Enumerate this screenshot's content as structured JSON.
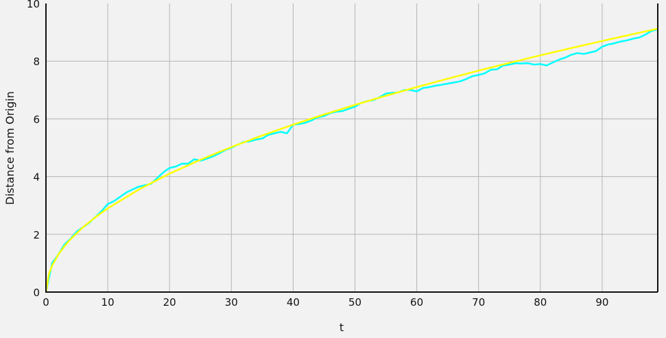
{
  "chart_data": {
    "type": "line",
    "title": "",
    "xlabel": "t",
    "ylabel": "Distance from Origin",
    "xlim": [
      0,
      99
    ],
    "ylim": [
      0,
      10
    ],
    "xticks": [
      0,
      10,
      20,
      30,
      40,
      50,
      60,
      70,
      80,
      90
    ],
    "yticks": [
      0,
      2,
      4,
      6,
      8,
      10
    ],
    "grid": true,
    "background": "#f2f2f2",
    "series": [
      {
        "color": "#00ffff",
        "x": [
          0,
          1,
          2,
          3,
          4,
          5,
          6,
          7,
          8,
          9,
          10,
          11,
          12,
          13,
          14,
          15,
          16,
          17,
          18,
          19,
          20,
          21,
          22,
          23,
          24,
          25,
          26,
          27,
          28,
          29,
          30,
          31,
          32,
          33,
          34,
          35,
          36,
          37,
          38,
          39,
          40,
          41,
          42,
          43,
          44,
          45,
          46,
          47,
          48,
          49,
          50,
          51,
          52,
          53,
          54,
          55,
          56,
          57,
          58,
          59,
          60,
          61,
          62,
          63,
          64,
          65,
          66,
          67,
          68,
          69,
          70,
          71,
          72,
          73,
          74,
          75,
          76,
          77,
          78,
          79,
          80,
          81,
          82,
          83,
          84,
          85,
          86,
          87,
          88,
          89,
          90,
          91,
          92,
          93,
          94,
          95,
          96,
          97,
          98,
          99
        ],
        "y": [
          0,
          1.0,
          1.3,
          1.65,
          1.85,
          2.1,
          2.25,
          2.4,
          2.6,
          2.8,
          3.05,
          3.15,
          3.3,
          3.45,
          3.55,
          3.65,
          3.7,
          3.75,
          3.95,
          4.15,
          4.3,
          4.35,
          4.45,
          4.45,
          4.6,
          4.55,
          4.62,
          4.7,
          4.8,
          4.92,
          5.0,
          5.1,
          5.2,
          5.22,
          5.28,
          5.32,
          5.45,
          5.5,
          5.55,
          5.5,
          5.8,
          5.82,
          5.87,
          5.95,
          6.05,
          6.1,
          6.2,
          6.25,
          6.27,
          6.35,
          6.42,
          6.55,
          6.62,
          6.65,
          6.75,
          6.88,
          6.9,
          6.92,
          7.0,
          7.0,
          6.95,
          7.07,
          7.1,
          7.15,
          7.18,
          7.22,
          7.26,
          7.3,
          7.38,
          7.48,
          7.52,
          7.58,
          7.7,
          7.72,
          7.85,
          7.88,
          7.93,
          7.92,
          7.93,
          7.88,
          7.9,
          7.85,
          7.95,
          8.05,
          8.12,
          8.22,
          8.28,
          8.25,
          8.3,
          8.35,
          8.5,
          8.58,
          8.62,
          8.68,
          8.72,
          8.78,
          8.82,
          8.92,
          9.05,
          9.1
        ]
      },
      {
        "color": "#ffff00",
        "x": [
          0,
          0.5,
          1,
          2,
          3,
          4,
          6,
          8,
          10,
          15,
          20,
          25,
          30,
          35,
          40,
          45,
          50,
          55,
          60,
          65,
          70,
          75,
          80,
          85,
          90,
          95,
          99
        ],
        "y": [
          0,
          0.648,
          0.917,
          1.297,
          1.588,
          1.834,
          2.246,
          2.594,
          2.9,
          3.551,
          4.101,
          4.585,
          5.023,
          5.425,
          5.8,
          6.151,
          6.484,
          6.801,
          7.103,
          7.393,
          7.672,
          7.941,
          8.202,
          8.454,
          8.699,
          8.938,
          9.124
        ]
      }
    ]
  }
}
